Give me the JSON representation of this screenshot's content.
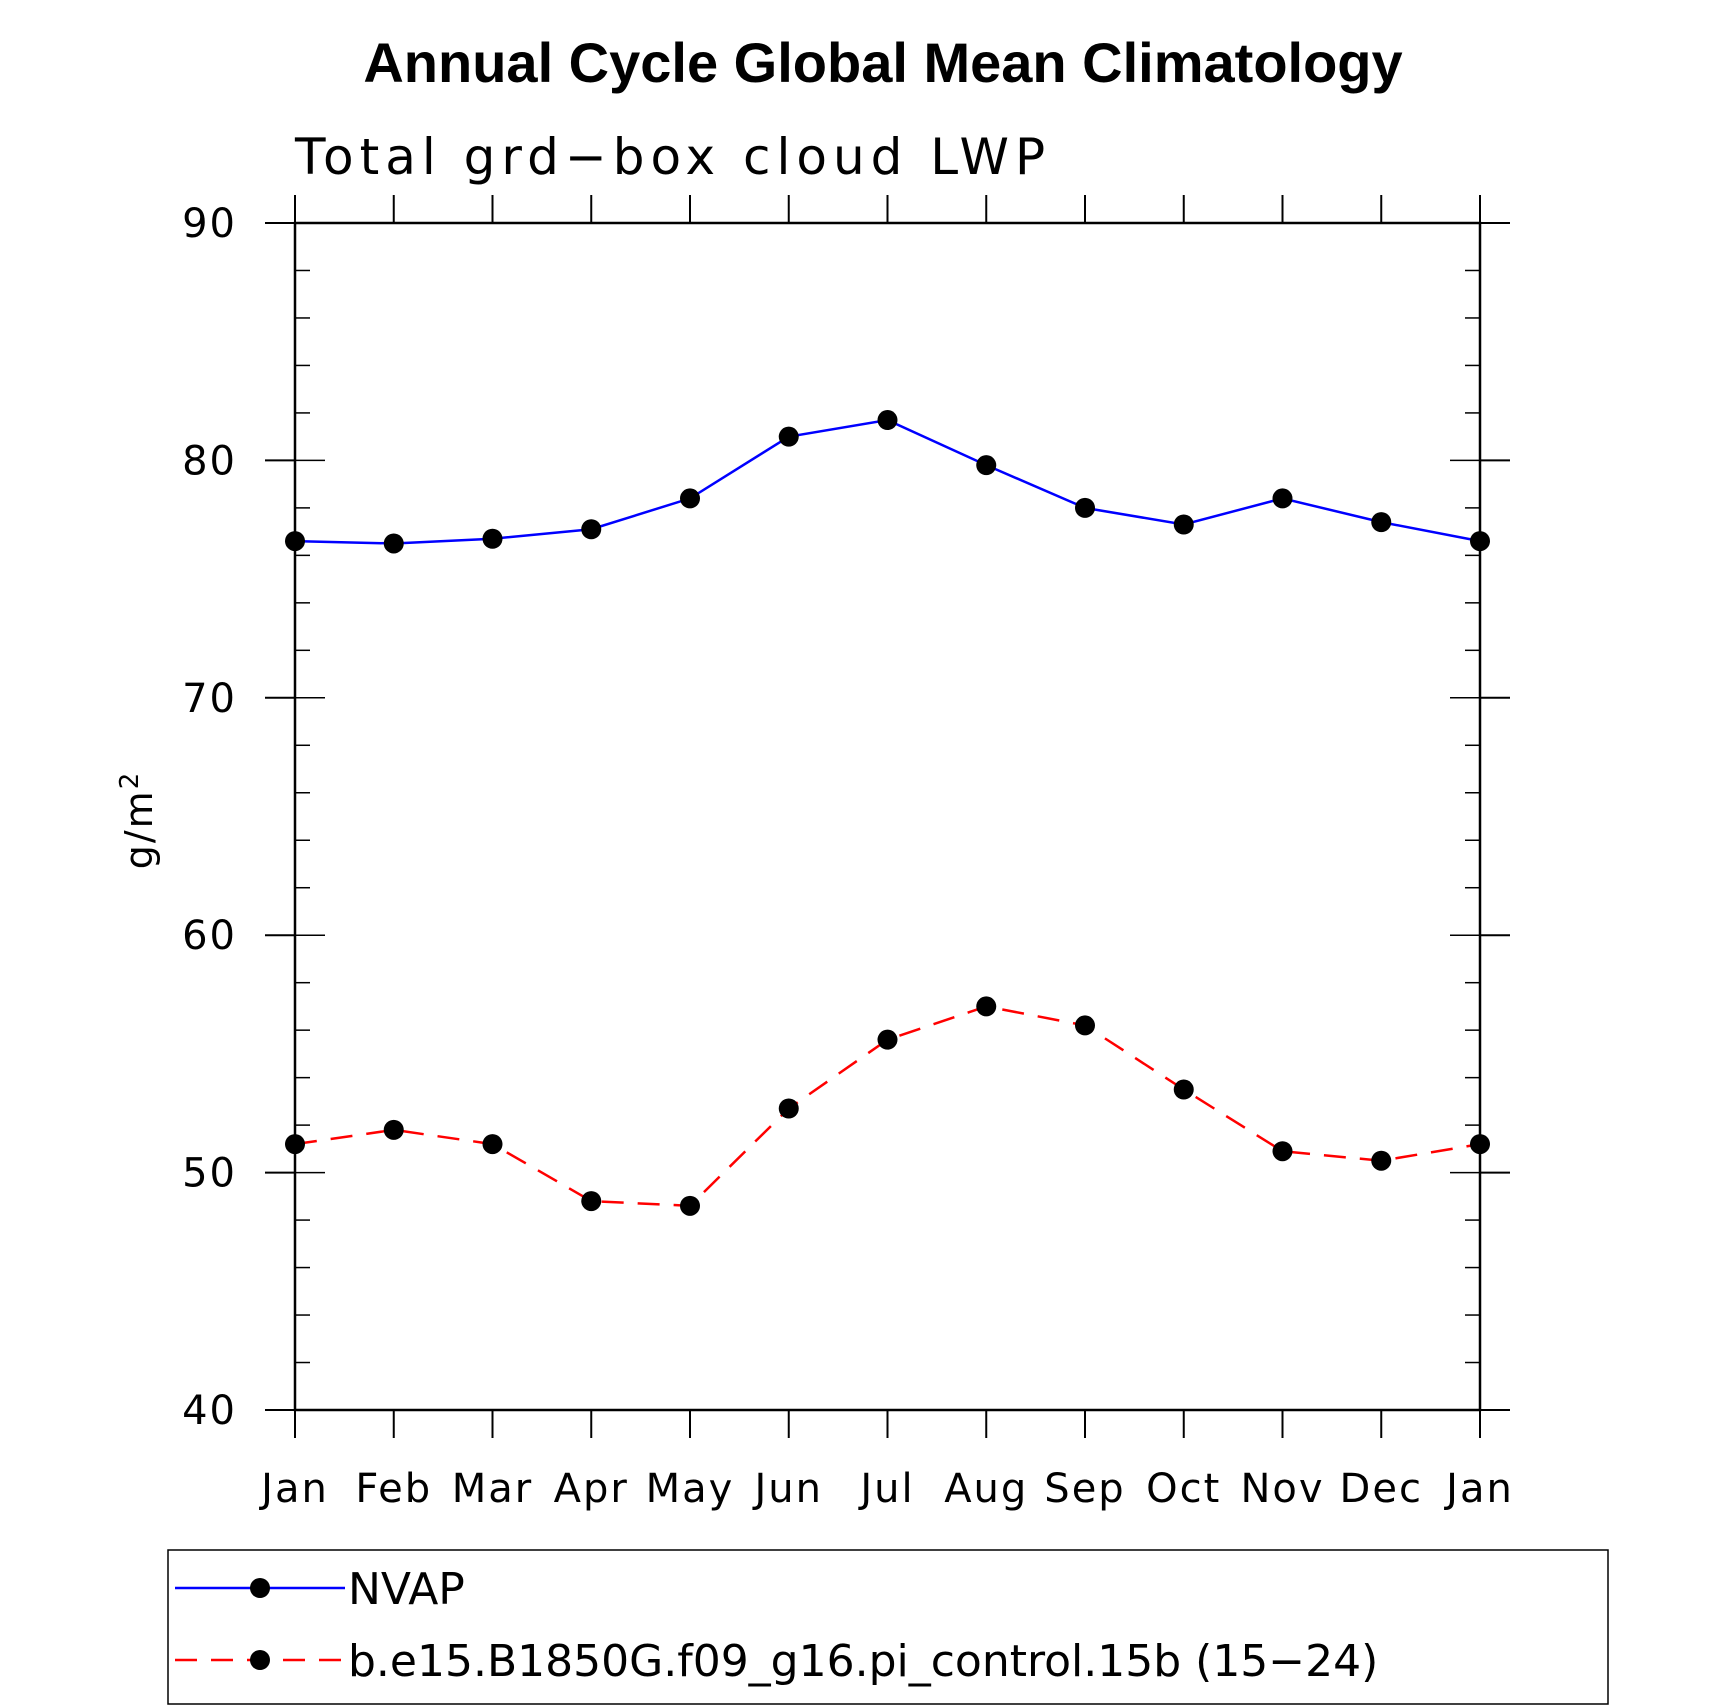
{
  "chart_data": {
    "type": "line",
    "title": "Annual Cycle Global Mean Climatology",
    "subtitle": "Total grd−box cloud LWP",
    "ylabel": "g/m",
    "ylabel_superscript": "2",
    "xlabel": "",
    "categories": [
      "Jan",
      "Feb",
      "Mar",
      "Apr",
      "May",
      "Jun",
      "Jul",
      "Aug",
      "Sep",
      "Oct",
      "Nov",
      "Dec",
      "Jan"
    ],
    "ylim": [
      40,
      90
    ],
    "yticks": [
      40,
      50,
      60,
      70,
      80,
      90
    ],
    "ytick_labels": [
      "40",
      "50",
      "60",
      "70",
      "80",
      "90"
    ],
    "grid": false,
    "legend_position": "bottom",
    "series": [
      {
        "name": "NVAP",
        "color": "#0000ff",
        "linestyle": "solid",
        "marker": "circle",
        "values": [
          76.6,
          76.5,
          76.7,
          77.1,
          78.4,
          81.0,
          81.7,
          79.8,
          78.0,
          77.3,
          78.4,
          77.4,
          76.6
        ]
      },
      {
        "name": "b.e15.B1850G.f09_g16.pi_control.15b (15−24)",
        "color": "#ff0000",
        "linestyle": "dashed",
        "marker": "circle",
        "values": [
          51.2,
          51.8,
          51.2,
          48.8,
          48.6,
          52.7,
          55.6,
          57.0,
          56.2,
          53.5,
          50.9,
          50.5,
          51.2
        ]
      }
    ]
  }
}
